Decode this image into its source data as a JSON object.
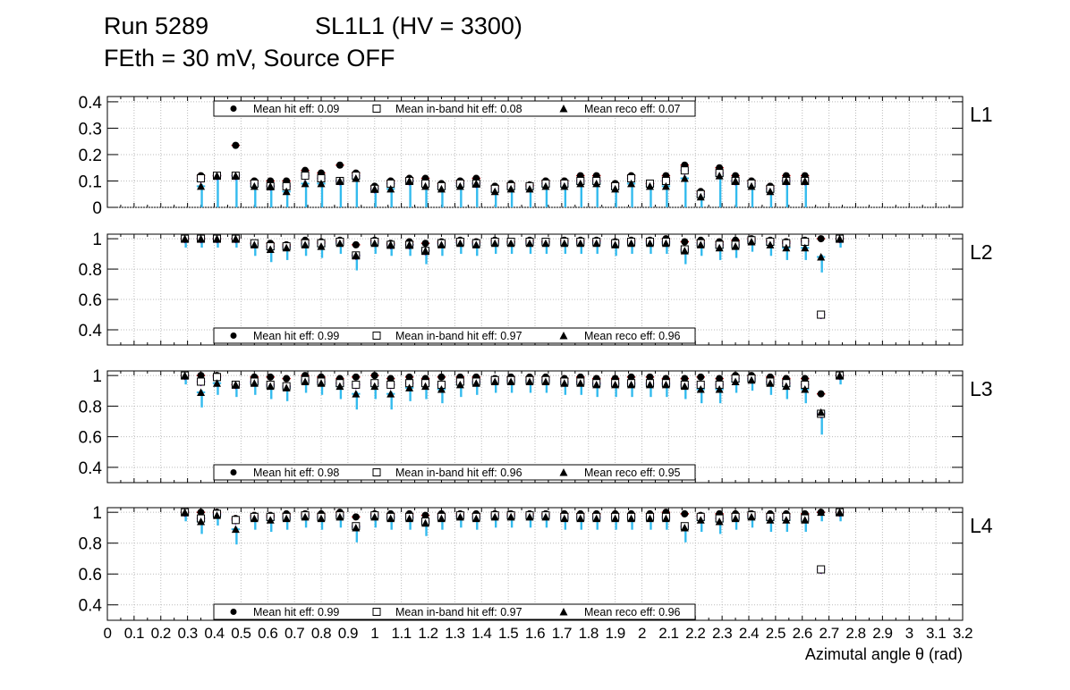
{
  "header": {
    "run": "Run 5289",
    "chamber": "SL1L1 (HV = 3300)",
    "conditions": "FEth = 30 mV, Source OFF"
  },
  "chart_data": {
    "type": "scatter",
    "xlabel": "Azimutal angle θ (rad)",
    "xlim": [
      0,
      3.2
    ],
    "x_ticks": [
      "0",
      "0.1",
      "0.2",
      "0.3",
      "0.4",
      "0.5",
      "0.6",
      "0.7",
      "0.8",
      "0.9",
      "1",
      "1.1",
      "1.2",
      "1.3",
      "1.4",
      "1.5",
      "1.6",
      "1.7",
      "1.8",
      "1.9",
      "2",
      "2.1",
      "2.2",
      "2.3",
      "2.4",
      "2.5",
      "2.6",
      "2.7",
      "2.8",
      "2.9",
      "3",
      "3.1",
      "3.2"
    ],
    "colors": {
      "hit": "#cc0000",
      "band": "#7700cc",
      "reco": "#33bbee",
      "marker": "#000000"
    },
    "panels": [
      {
        "label": "L1",
        "ylim": [
          0,
          0.42
        ],
        "y_ticks": [
          "0",
          "0.1",
          "0.2",
          "0.3",
          "0.4"
        ],
        "legend": [
          "Mean hit  eff: 0.09",
          "Mean in-band hit eff: 0.08",
          "Mean reco eff: 0.07"
        ],
        "x": [
          0.35,
          0.41,
          0.48,
          0.55,
          0.61,
          0.67,
          0.74,
          0.8,
          0.87,
          0.93,
          1.0,
          1.06,
          1.13,
          1.19,
          1.25,
          1.32,
          1.38,
          1.45,
          1.51,
          1.58,
          1.64,
          1.71,
          1.77,
          1.83,
          1.9,
          1.96,
          2.03,
          2.09,
          2.16,
          2.22,
          2.29,
          2.35,
          2.41,
          2.48,
          2.54,
          2.61
        ],
        "hit": [
          0.12,
          0.12,
          0.235,
          0.1,
          0.1,
          0.1,
          0.14,
          0.13,
          0.16,
          0.13,
          0.08,
          0.1,
          0.11,
          0.11,
          0.09,
          0.1,
          0.11,
          0.08,
          0.09,
          0.085,
          0.1,
          0.1,
          0.12,
          0.12,
          0.09,
          0.12,
          0.09,
          0.12,
          0.16,
          0.06,
          0.15,
          0.12,
          0.1,
          0.08,
          0.12,
          0.12
        ],
        "band": [
          0.11,
          0.12,
          0.12,
          0.09,
          0.08,
          0.08,
          0.12,
          0.11,
          0.1,
          0.12,
          0.07,
          0.09,
          0.1,
          0.09,
          0.08,
          0.09,
          0.09,
          0.07,
          0.08,
          0.08,
          0.09,
          0.09,
          0.1,
          0.1,
          0.08,
          0.11,
          0.09,
          0.1,
          0.14,
          0.05,
          0.13,
          0.1,
          0.09,
          0.07,
          0.1,
          0.1
        ],
        "reco": [
          0.08,
          0.12,
          0.12,
          0.08,
          0.08,
          0.06,
          0.09,
          0.09,
          0.1,
          0.11,
          0.07,
          0.07,
          0.1,
          0.08,
          0.07,
          0.08,
          0.09,
          0.06,
          0.07,
          0.07,
          0.08,
          0.08,
          0.09,
          0.09,
          0.07,
          0.09,
          0.08,
          0.08,
          0.11,
          0.04,
          0.12,
          0.1,
          0.08,
          0.06,
          0.1,
          0.1
        ]
      },
      {
        "label": "L2",
        "ylim": [
          0.3,
          1.03
        ],
        "y_ticks": [
          "0.4",
          "0.6",
          "0.8",
          "1"
        ],
        "legend": [
          "Mean hit  eff: 0.99",
          "Mean in-band hit eff: 0.97",
          "Mean reco eff: 0.96"
        ],
        "x": [
          0.29,
          0.35,
          0.41,
          0.48,
          0.55,
          0.61,
          0.67,
          0.74,
          0.8,
          0.87,
          0.93,
          1.0,
          1.06,
          1.13,
          1.19,
          1.25,
          1.32,
          1.38,
          1.45,
          1.51,
          1.58,
          1.64,
          1.71,
          1.77,
          1.83,
          1.9,
          1.96,
          2.03,
          2.09,
          2.16,
          2.22,
          2.29,
          2.35,
          2.41,
          2.48,
          2.54,
          2.61,
          2.67,
          2.74
        ],
        "hit": [
          1.0,
          1.0,
          1.0,
          1.0,
          0.97,
          0.97,
          0.96,
          0.99,
          0.98,
          0.99,
          0.96,
          0.99,
          0.97,
          0.98,
          0.97,
          0.98,
          0.99,
          0.98,
          0.99,
          0.98,
          0.99,
          0.98,
          0.99,
          0.99,
          0.99,
          0.98,
          0.99,
          0.99,
          1.0,
          0.98,
          0.99,
          0.98,
          0.99,
          1.0,
          0.99,
          0.98,
          0.99,
          1.0,
          1.0
        ],
        "band": [
          1.0,
          1.0,
          1.0,
          1.0,
          0.97,
          0.95,
          0.95,
          0.97,
          0.97,
          0.98,
          0.89,
          0.98,
          0.96,
          0.96,
          0.92,
          0.97,
          0.98,
          0.97,
          0.98,
          0.98,
          0.98,
          0.98,
          0.98,
          0.98,
          0.98,
          0.97,
          0.98,
          0.98,
          0.98,
          0.93,
          0.97,
          0.96,
          0.96,
          0.99,
          0.98,
          0.97,
          0.98,
          0.5,
          1.0
        ],
        "reco": [
          1.0,
          1.0,
          1.0,
          1.0,
          0.96,
          0.93,
          0.94,
          0.96,
          0.95,
          0.97,
          0.89,
          0.97,
          0.96,
          0.96,
          0.92,
          0.96,
          0.97,
          0.96,
          0.97,
          0.97,
          0.97,
          0.97,
          0.97,
          0.97,
          0.97,
          0.96,
          0.97,
          0.97,
          0.97,
          0.92,
          0.96,
          0.94,
          0.95,
          0.98,
          0.96,
          0.94,
          0.94,
          0.88,
          1.0
        ]
      },
      {
        "label": "L3",
        "ylim": [
          0.3,
          1.03
        ],
        "y_ticks": [
          "0.4",
          "0.6",
          "0.8",
          "1"
        ],
        "legend": [
          "Mean hit  eff: 0.98",
          "Mean in-band hit eff: 0.96",
          "Mean reco eff: 0.95"
        ],
        "x": [
          0.29,
          0.35,
          0.41,
          0.48,
          0.55,
          0.61,
          0.67,
          0.74,
          0.8,
          0.87,
          0.93,
          1.0,
          1.06,
          1.13,
          1.19,
          1.25,
          1.32,
          1.38,
          1.45,
          1.51,
          1.58,
          1.64,
          1.71,
          1.77,
          1.83,
          1.9,
          1.96,
          2.03,
          2.09,
          2.16,
          2.22,
          2.29,
          2.35,
          2.41,
          2.48,
          2.54,
          2.61,
          2.67,
          2.74
        ],
        "hit": [
          1.0,
          1.0,
          1.0,
          0.94,
          0.99,
          0.99,
          0.98,
          1.0,
          0.99,
          0.98,
          0.99,
          1.0,
          0.98,
          0.99,
          0.98,
          0.99,
          0.99,
          0.99,
          0.98,
          0.99,
          0.99,
          0.99,
          0.98,
          0.99,
          0.98,
          0.98,
          0.99,
          0.99,
          0.98,
          0.98,
          0.99,
          0.98,
          1.0,
          1.0,
          0.99,
          0.98,
          0.98,
          0.88,
          1.0
        ],
        "band": [
          1.0,
          0.96,
          0.99,
          0.94,
          0.96,
          0.94,
          0.93,
          0.97,
          0.96,
          0.95,
          0.94,
          0.95,
          0.94,
          0.95,
          0.95,
          0.94,
          0.96,
          0.96,
          0.97,
          0.97,
          0.97,
          0.97,
          0.96,
          0.96,
          0.95,
          0.95,
          0.95,
          0.95,
          0.95,
          0.94,
          0.94,
          0.94,
          0.98,
          0.98,
          0.96,
          0.95,
          0.94,
          0.75,
          1.0
        ],
        "reco": [
          1.0,
          0.89,
          0.95,
          0.94,
          0.95,
          0.93,
          0.92,
          0.96,
          0.95,
          0.93,
          0.88,
          0.93,
          0.88,
          0.92,
          0.93,
          0.91,
          0.94,
          0.95,
          0.96,
          0.96,
          0.96,
          0.96,
          0.95,
          0.95,
          0.94,
          0.94,
          0.94,
          0.94,
          0.94,
          0.93,
          0.91,
          0.91,
          0.96,
          0.97,
          0.95,
          0.93,
          0.91,
          0.76,
          1.0
        ]
      },
      {
        "label": "L4",
        "ylim": [
          0.3,
          1.03
        ],
        "y_ticks": [
          "0.4",
          "0.6",
          "0.8",
          "1"
        ],
        "legend": [
          "Mean hit  eff: 0.99",
          "Mean in-band hit eff: 0.97",
          "Mean reco eff: 0.96"
        ],
        "x": [
          0.29,
          0.35,
          0.41,
          0.48,
          0.55,
          0.61,
          0.67,
          0.74,
          0.8,
          0.87,
          0.93,
          1.0,
          1.06,
          1.13,
          1.19,
          1.25,
          1.32,
          1.38,
          1.45,
          1.51,
          1.58,
          1.64,
          1.71,
          1.77,
          1.83,
          1.9,
          1.96,
          2.03,
          2.09,
          2.16,
          2.22,
          2.29,
          2.35,
          2.41,
          2.48,
          2.54,
          2.61,
          2.67,
          2.74
        ],
        "hit": [
          1.0,
          1.0,
          1.0,
          0.96,
          0.98,
          0.98,
          0.99,
          0.99,
          0.99,
          1.0,
          0.97,
          0.99,
          0.99,
          0.99,
          0.98,
          0.99,
          0.99,
          0.99,
          0.99,
          0.99,
          0.99,
          0.99,
          0.99,
          0.99,
          0.99,
          0.99,
          0.99,
          0.99,
          1.0,
          0.99,
          0.98,
          0.99,
          0.99,
          0.99,
          0.99,
          0.99,
          0.99,
          1.0,
          1.0
        ],
        "band": [
          1.0,
          0.96,
          0.99,
          0.95,
          0.97,
          0.97,
          0.97,
          0.98,
          0.97,
          0.98,
          0.91,
          0.98,
          0.97,
          0.97,
          0.94,
          0.97,
          0.98,
          0.97,
          0.98,
          0.98,
          0.98,
          0.98,
          0.97,
          0.97,
          0.97,
          0.97,
          0.97,
          0.97,
          0.97,
          0.91,
          0.97,
          0.96,
          0.97,
          0.98,
          0.97,
          0.97,
          0.96,
          0.63,
          1.0
        ],
        "reco": [
          1.0,
          0.94,
          0.98,
          0.89,
          0.96,
          0.95,
          0.96,
          0.97,
          0.96,
          0.97,
          0.9,
          0.97,
          0.96,
          0.96,
          0.93,
          0.96,
          0.97,
          0.96,
          0.97,
          0.97,
          0.97,
          0.97,
          0.96,
          0.96,
          0.96,
          0.96,
          0.96,
          0.96,
          0.96,
          0.9,
          0.95,
          0.94,
          0.96,
          0.97,
          0.95,
          0.95,
          0.95,
          1.0,
          1.0
        ]
      }
    ]
  }
}
